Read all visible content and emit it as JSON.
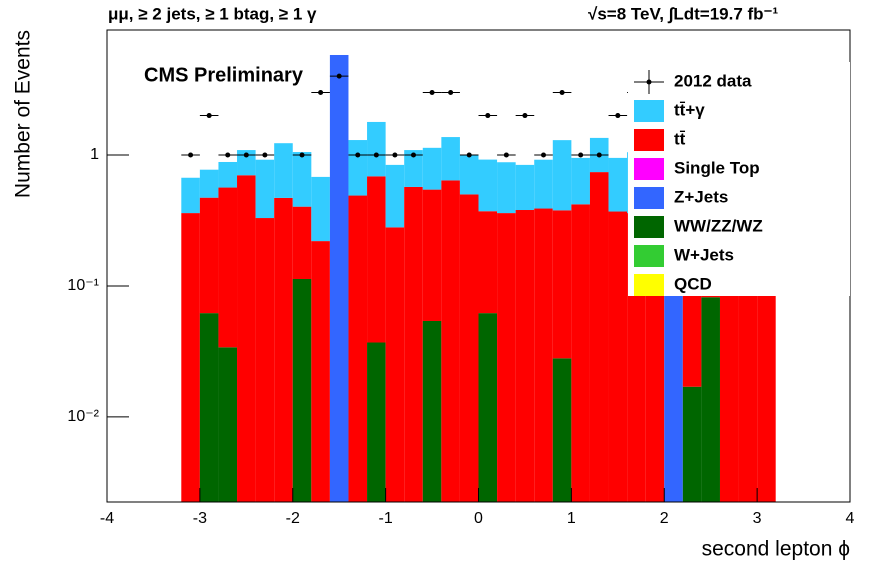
{
  "chart_data": {
    "type": "stacked-histogram",
    "title_left": "μμ, ≥ 2 jets, ≥ 1 btag, ≥ 1 γ",
    "title_right": "√s=8 TeV,  ∫Ldt=19.7 fb⁻¹",
    "annotation": "CMS Preliminary",
    "x_label": "second lepton ϕ",
    "y_label": "Number of Events",
    "log_y": true,
    "bins": [
      -3.2,
      -3.0,
      -2.8,
      -2.6,
      -2.4,
      -2.2,
      -2.0,
      -1.8,
      -1.6,
      -1.4,
      -1.2,
      -1.0,
      -0.8,
      -0.6,
      -0.4,
      -0.2,
      0.0,
      0.2,
      0.4,
      0.6,
      0.8,
      1.0,
      1.2,
      1.4,
      1.6,
      1.8,
      2.0,
      2.2,
      2.4,
      2.6,
      2.8,
      3.0,
      3.2
    ],
    "xlim": [
      -4,
      4
    ],
    "xticks": [
      -4,
      -3,
      -2,
      -1,
      0,
      1,
      2,
      3,
      4
    ],
    "ylim": [
      0.00224,
      9
    ],
    "yticks": [
      {
        "value": 0.01,
        "label": "10⁻²"
      },
      {
        "value": 0.1,
        "label": "10⁻¹"
      },
      1
    ],
    "data": {
      "name": "2012 data",
      "color": "#000000",
      "values": [
        1,
        2,
        1,
        1,
        1,
        null,
        1,
        3,
        4,
        1,
        1,
        1,
        1,
        3,
        3,
        1,
        2,
        1,
        2,
        1,
        3,
        1,
        1,
        2,
        3,
        1,
        3,
        2,
        1,
        1,
        2,
        1
      ]
    },
    "series": [
      {
        "name": "tt̄+γ",
        "color": "#33ccff",
        "values": [
          0.31,
          0.3,
          0.32,
          0.39,
          0.59,
          0.76,
          0.65,
          0.46,
          0,
          0.81,
          1.1,
          0.56,
          0.52,
          0.59,
          0.73,
          0.5,
          0.55,
          0.52,
          0.46,
          0.53,
          0.92,
          0.53,
          0.61,
          0.58,
          0.69,
          0.67,
          0,
          0.6,
          0.6,
          0.6,
          0.6,
          0.6
        ]
      },
      {
        "name": "tt̄",
        "color": "#ff0000",
        "values": [
          0.36,
          0.41,
          0.53,
          0.7,
          0.33,
          0.47,
          0.29,
          0.22,
          0,
          0.49,
          0.65,
          0.28,
          0.57,
          0.49,
          0.64,
          0.5,
          0.31,
          0.36,
          0.38,
          0.39,
          0.35,
          0.42,
          0.74,
          0.37,
          0.36,
          0.33,
          0,
          0.4,
          0.3,
          0.35,
          0.4,
          0.38
        ]
      },
      {
        "name": "Single Top",
        "color": "#ff00ff",
        "values": [
          0,
          0,
          0,
          0,
          0,
          0,
          0,
          0,
          0,
          0,
          0,
          0,
          0,
          0,
          0,
          0,
          0,
          0,
          0,
          0,
          0,
          0,
          0,
          0,
          0,
          0,
          0,
          0,
          0,
          0,
          0,
          0
        ]
      },
      {
        "name": "Z+Jets",
        "color": "#3366ff",
        "values": [
          0,
          0,
          0,
          0,
          0,
          0,
          0,
          0,
          5.8,
          0,
          0,
          0,
          0,
          0,
          0,
          0,
          0,
          0,
          0,
          0,
          0,
          0,
          0,
          0,
          0,
          0,
          4.2,
          0,
          0,
          0,
          0,
          0
        ]
      },
      {
        "name": "WW/ZZ/WZ",
        "color": "#006600",
        "values": [
          0,
          0.062,
          0.034,
          0,
          0,
          0,
          0.113,
          0,
          0,
          0,
          0.037,
          0,
          0,
          0.054,
          0,
          0,
          0.062,
          0,
          0,
          0,
          0.028,
          0,
          0,
          0,
          0,
          0,
          0,
          0.017,
          0.082,
          0,
          0,
          0
        ]
      },
      {
        "name": "W+Jets",
        "color": "#33cc33",
        "values": [
          0,
          0,
          0,
          0,
          0,
          0,
          0,
          0,
          0,
          0,
          0,
          0,
          0,
          0,
          0,
          0,
          0,
          0,
          0,
          0,
          0,
          0,
          0,
          0,
          0,
          0,
          0,
          0,
          0,
          0,
          0,
          0
        ]
      },
      {
        "name": "QCD",
        "color": "#ffff00",
        "values": [
          0,
          0,
          0,
          0,
          0,
          0,
          0,
          0,
          0,
          0,
          0,
          0,
          0,
          0,
          0,
          0,
          0,
          0,
          0,
          0,
          0,
          0,
          0,
          0,
          0,
          0,
          0,
          0,
          0,
          0,
          0,
          0
        ]
      }
    ]
  }
}
